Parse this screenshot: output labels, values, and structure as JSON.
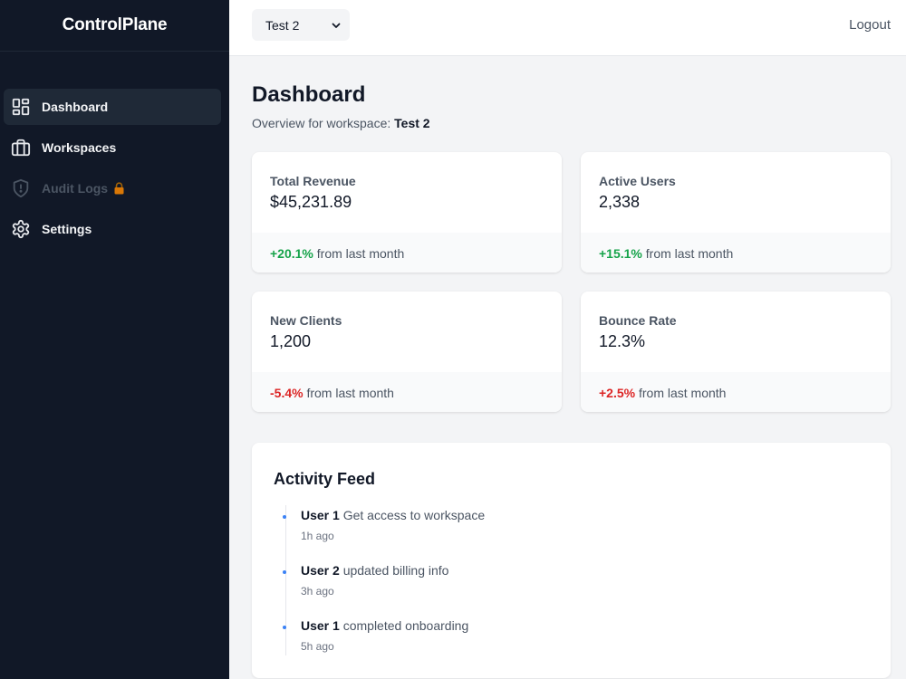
{
  "app": {
    "brand": "ControlPlane"
  },
  "sidebar": {
    "items": [
      {
        "label": "Dashboard",
        "icon": "layout-grid-icon",
        "active": true,
        "disabled": false
      },
      {
        "label": "Workspaces",
        "icon": "briefcase-icon",
        "active": false,
        "disabled": false
      },
      {
        "label": "Audit Logs",
        "icon": "shield-icon",
        "active": false,
        "disabled": true,
        "badge_icon": "lock-icon"
      },
      {
        "label": "Settings",
        "icon": "gear-icon",
        "active": false,
        "disabled": false
      }
    ]
  },
  "topbar": {
    "workspace_select": {
      "selected": "Test 2"
    },
    "logout_label": "Logout"
  },
  "main": {
    "title": "Dashboard",
    "subtitle_prefix": "Overview for workspace:",
    "subtitle_workspace": "Test 2",
    "stats": [
      {
        "label": "Total Revenue",
        "value": "$45,231.89",
        "change": "+20.1%",
        "change_suffix": "from last month",
        "trend": "positive"
      },
      {
        "label": "Active Users",
        "value": "2,338",
        "change": "+15.1%",
        "change_suffix": "from last month",
        "trend": "positive"
      },
      {
        "label": "New Clients",
        "value": "1,200",
        "change": "-5.4%",
        "change_suffix": "from last month",
        "trend": "negative"
      },
      {
        "label": "Bounce Rate",
        "value": "12.3%",
        "change": "+2.5%",
        "change_suffix": "from last month",
        "trend": "negative"
      }
    ],
    "activity": {
      "title": "Activity Feed",
      "items": [
        {
          "user": "User 1",
          "action": "Get access to workspace",
          "time": "1h ago"
        },
        {
          "user": "User 2",
          "action": "updated billing info",
          "time": "3h ago"
        },
        {
          "user": "User 1",
          "action": "completed onboarding",
          "time": "5h ago"
        }
      ]
    }
  },
  "colors": {
    "sidebar_bg": "#111827",
    "active_item_bg": "#1f2937",
    "positive": "#16a34a",
    "negative": "#dc2626",
    "timeline_dot": "#3b82f6",
    "lock": "#d97706"
  }
}
